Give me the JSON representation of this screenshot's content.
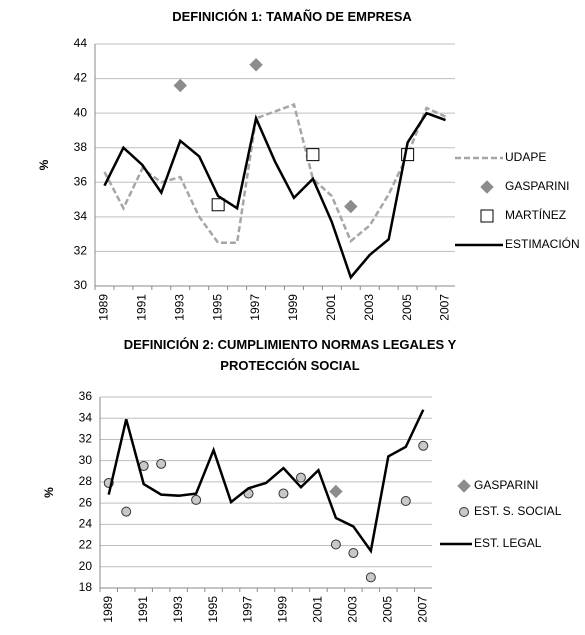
{
  "chart_data": [
    {
      "type": "line",
      "title": "DEFINICIÓN 1: TAMAÑO DE EMPRESA",
      "y_label": "%",
      "categories": [
        "1989",
        null,
        "1991",
        null,
        "1993",
        null,
        "1995",
        null,
        "1997",
        null,
        "1999",
        null,
        "2001",
        null,
        "2003",
        null,
        "2005",
        null,
        "2007"
      ],
      "ylim": [
        30,
        44
      ],
      "yticks": [
        30,
        32,
        34,
        36,
        38,
        40,
        42,
        44
      ],
      "grid": true,
      "legend": "right",
      "series": [
        {
          "name": "UDAPE",
          "color": "#a6a6a6",
          "kind": "line",
          "dashed": true,
          "values": [
            36.6,
            34.5,
            36.8,
            36.0,
            36.3,
            34.0,
            32.5,
            32.5,
            39.7,
            40.1,
            40.5,
            36.2,
            35.2,
            32.6,
            33.5,
            35.3,
            37.6,
            40.3,
            39.8
          ]
        },
        {
          "name": "GASPARINI",
          "color": "#8c8c8c",
          "kind": "diamond",
          "values": [
            null,
            null,
            null,
            null,
            41.6,
            null,
            null,
            null,
            42.8,
            null,
            null,
            null,
            null,
            34.6,
            null,
            null,
            null,
            null,
            null
          ]
        },
        {
          "name": "MARTÍNEZ",
          "color": "#ffffff",
          "kind": "square",
          "values": [
            null,
            null,
            null,
            null,
            null,
            null,
            34.7,
            null,
            null,
            null,
            null,
            37.6,
            null,
            null,
            null,
            null,
            37.6,
            null,
            null
          ]
        },
        {
          "name": "ESTIMACIÓN",
          "color": "#000000",
          "kind": "line",
          "dashed": false,
          "values": [
            35.8,
            38.0,
            37.0,
            35.4,
            38.4,
            37.5,
            35.2,
            34.5,
            39.7,
            37.2,
            35.1,
            36.2,
            33.7,
            30.5,
            31.8,
            32.7,
            38.3,
            40.0,
            39.6
          ]
        }
      ]
    },
    {
      "type": "line",
      "title": "DEFINICIÓN 2: CUMPLIMIENTO NORMAS LEGALES Y PROTECCIÓN SOCIAL",
      "y_label": "%",
      "categories": [
        "1989",
        null,
        "1991",
        null,
        "1993",
        null,
        "1995",
        null,
        "1997",
        null,
        "1999",
        null,
        "2001",
        null,
        "2003",
        null,
        "2005",
        null,
        "2007"
      ],
      "ylim": [
        18,
        36
      ],
      "yticks": [
        18,
        20,
        22,
        24,
        26,
        28,
        30,
        32,
        34,
        36
      ],
      "grid": true,
      "legend": "right",
      "series": [
        {
          "name": "GASPARINI",
          "color": "#8c8c8c",
          "kind": "diamond",
          "values": [
            null,
            null,
            null,
            null,
            null,
            null,
            null,
            null,
            null,
            null,
            null,
            null,
            null,
            27.1,
            null,
            null,
            null,
            null,
            null
          ]
        },
        {
          "name": "EST. S. SOCIAL",
          "color": "#c8c8c8",
          "kind": "circle",
          "values": [
            27.9,
            25.2,
            29.5,
            29.7,
            null,
            26.3,
            null,
            null,
            26.9,
            null,
            26.9,
            28.4,
            null,
            22.1,
            21.3,
            19.0,
            null,
            26.2,
            31.4
          ]
        },
        {
          "name": "EST. LEGAL",
          "color": "#000000",
          "kind": "line",
          "dashed": false,
          "values": [
            26.8,
            33.9,
            27.8,
            26.8,
            26.7,
            26.9,
            31.0,
            26.1,
            27.4,
            27.9,
            29.3,
            27.5,
            29.1,
            24.6,
            23.8,
            21.5,
            30.4,
            31.3,
            34.8
          ]
        }
      ]
    }
  ]
}
